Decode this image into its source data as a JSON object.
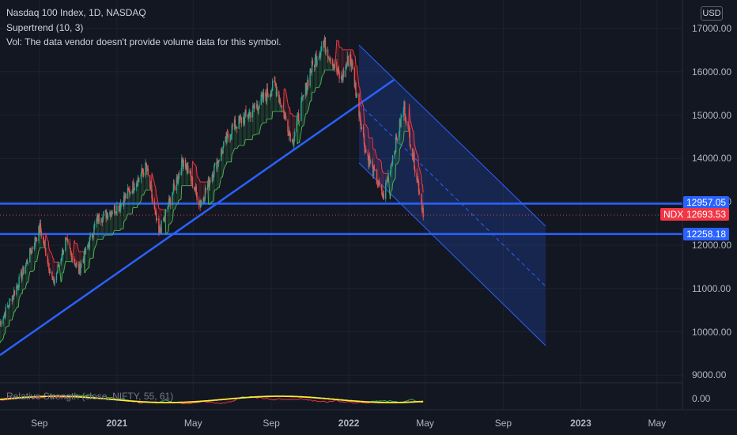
{
  "header": {
    "title": "Nasdaq 100 Index, 1D, NASDAQ",
    "indicator1": "Supertrend (10, 3)",
    "indicator2": "Vol: The data vendor doesn't provide volume data for this symbol.",
    "currency": "USD"
  },
  "rs_panel": {
    "label": "Relative Strength (close, NIFTY, 55, 61)",
    "tick": "0.00"
  },
  "price_tags": {
    "upper_line": "12957.05",
    "lower_line": "12258.18",
    "symbol": "NDX",
    "last": "12693.53"
  },
  "colors": {
    "background": "#131722",
    "trendline": "#2962ff",
    "channel_fill": "#2962ff",
    "up": "#26a69a",
    "down": "#ef5350",
    "supertrend_up": "#4caf50",
    "supertrend_down": "#f23645",
    "rs_line": "#ffeb3b"
  },
  "chart_data": {
    "type": "line",
    "title": "Nasdaq 100 Index, 1D, NASDAQ",
    "ylim": [
      8800,
      17300
    ],
    "y_ticks": [
      "17000.00",
      "16000.00",
      "15000.00",
      "14000.00",
      "13000.00",
      "12000.00",
      "11000.00",
      "10000.00",
      "9000.00"
    ],
    "x_ticks": [
      "Sep",
      "2021",
      "May",
      "Sep",
      "2022",
      "May",
      "Sep",
      "2023",
      "May"
    ],
    "x_tick_dates": [
      "2020-09-01",
      "2021-01-01",
      "2021-05-01",
      "2021-09-01",
      "2022-01-01",
      "2022-05-01",
      "2022-09-01",
      "2023-01-01",
      "2023-05-01"
    ],
    "xlim": [
      "2020-07-01",
      "2023-06-10"
    ],
    "series": [
      {
        "name": "NDX",
        "x": [
          "2020-07-01",
          "2020-08-01",
          "2020-09-02",
          "2020-09-23",
          "2020-10-12",
          "2020-11-02",
          "2020-12-01",
          "2021-01-04",
          "2021-02-16",
          "2021-03-08",
          "2021-04-16",
          "2021-05-12",
          "2021-06-01",
          "2021-07-01",
          "2021-08-02",
          "2021-09-07",
          "2021-10-04",
          "2021-11-01",
          "2021-11-22",
          "2021-12-20",
          "2022-01-03",
          "2022-01-27",
          "2022-02-24",
          "2022-03-29",
          "2022-04-14",
          "2022-04-29"
        ],
        "y": [
          10200,
          11200,
          12400,
          11100,
          12100,
          11400,
          12600,
          12900,
          13800,
          12250,
          14000,
          12950,
          13700,
          14700,
          15100,
          15700,
          14400,
          16000,
          16700,
          15800,
          16400,
          14200,
          13100,
          15200,
          13900,
          12700
        ]
      }
    ],
    "horizontal_lines": [
      12957.05,
      12258.18
    ],
    "last_price": 12693.53
  }
}
